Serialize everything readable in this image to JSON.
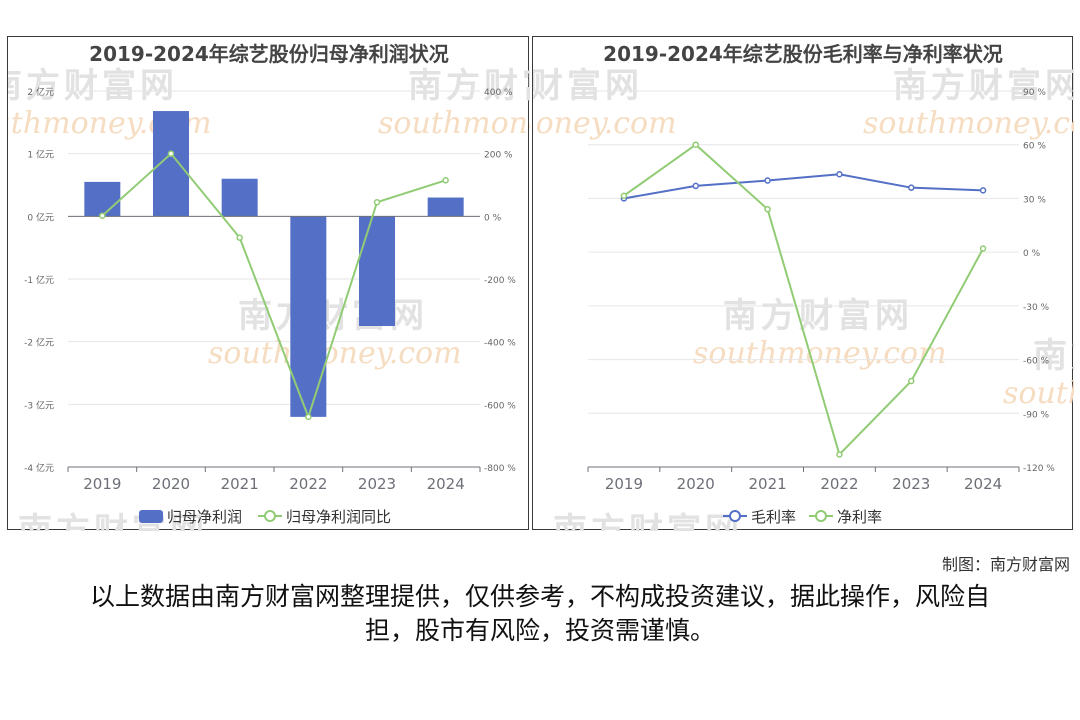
{
  "chart_data": [
    {
      "type": "bar+line",
      "title": "2019-2024年综艺股份归母净利润状况",
      "categories": [
        "2019",
        "2020",
        "2021",
        "2022",
        "2023",
        "2024"
      ],
      "series": [
        {
          "name": "归母净利润",
          "type": "bar",
          "axis": "left",
          "values": [
            0.55,
            1.68,
            0.6,
            -3.2,
            -1.75,
            0.3
          ]
        },
        {
          "name": "归母净利润同比",
          "type": "line",
          "axis": "right",
          "values": [
            2,
            200,
            -68,
            -640,
            45,
            115
          ]
        }
      ],
      "left_axis": {
        "ticks": [
          2,
          1,
          0,
          -1,
          -2,
          -3,
          -4
        ],
        "labels": [
          "2 亿元",
          "1 亿元",
          "0 亿元",
          "-1 亿元",
          "-2 亿元",
          "-3 亿元",
          "-4 亿元"
        ],
        "ylim": [
          -4,
          2
        ]
      },
      "right_axis": {
        "ticks": [
          400,
          200,
          0,
          -200,
          -400,
          -600,
          -800
        ],
        "labels": [
          "400 %",
          "200 %",
          "0 %",
          "-200 %",
          "-400 %",
          "-600 %",
          "-800 %"
        ],
        "ylim": [
          -800,
          400
        ]
      },
      "legend_position": "bottom-center",
      "grid": true,
      "colors": {
        "bar": "#5470c6",
        "line": "#91cc75"
      }
    },
    {
      "type": "line",
      "title": "2019-2024年综艺股份毛利率与净利率状况",
      "categories": [
        "2019",
        "2020",
        "2021",
        "2022",
        "2023",
        "2024"
      ],
      "series": [
        {
          "name": "毛利率",
          "values": [
            30,
            37,
            40,
            43.5,
            36,
            34.5
          ]
        },
        {
          "name": "净利率",
          "values": [
            31.5,
            60,
            24,
            -113,
            -72,
            2
          ]
        }
      ],
      "right_axis": {
        "ticks": [
          90,
          60,
          30,
          0,
          -30,
          -60,
          -90,
          -120
        ],
        "labels": [
          "90 %",
          "60 %",
          "30 %",
          "0 %",
          "-30 %",
          "-60 %",
          "-90 %",
          "-120 %"
        ],
        "ylim": [
          -120,
          90
        ]
      },
      "legend_position": "bottom-center",
      "grid": true,
      "colors": {
        "毛利率": "#5470c6",
        "净利率": "#91cc75"
      }
    }
  ],
  "watermark": {
    "name": "南方财富网",
    "url": "southmoney.com"
  },
  "credit": "制图：南方财富网",
  "disclaimer": "以上数据由南方财富网整理提供，仅供参考，不构成投资建议，据此操作，风险自担，股市有风险，投资需谨慎。"
}
